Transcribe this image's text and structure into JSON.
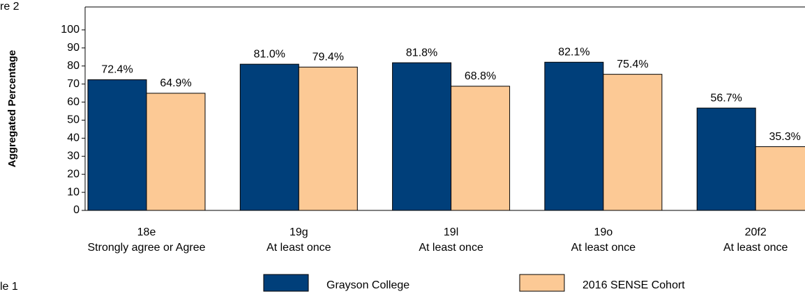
{
  "chart_data": {
    "type": "bar",
    "annotations": [
      "re 2",
      "le 1"
    ],
    "ylabel": "Aggregated Percentage",
    "categories": [
      [
        "18e",
        "Strongly agree or Agree"
      ],
      [
        "19g",
        "At least once"
      ],
      [
        "19l",
        "At least once"
      ],
      [
        "19o",
        "At least once"
      ],
      [
        "20f2",
        "At least once"
      ]
    ],
    "series": [
      {
        "name": "Grayson College",
        "color": "#003f7a",
        "values": [
          72.4,
          81.0,
          81.8,
          82.1,
          56.7
        ],
        "value_labels": [
          "72.4%",
          "81.0%",
          "81.8%",
          "82.1%",
          "56.7%"
        ]
      },
      {
        "name": "2016 SENSE Cohort",
        "color": "#fcc995",
        "values": [
          64.9,
          79.4,
          68.8,
          75.4,
          35.3
        ],
        "value_labels": [
          "64.9%",
          "79.4%",
          "68.8%",
          "75.4%",
          "35.3%"
        ]
      }
    ],
    "ylim": [
      0,
      112.7
    ],
    "yticks": [
      0,
      10,
      20,
      30,
      40,
      50,
      60,
      70,
      80,
      90,
      100
    ],
    "grid": false
  }
}
